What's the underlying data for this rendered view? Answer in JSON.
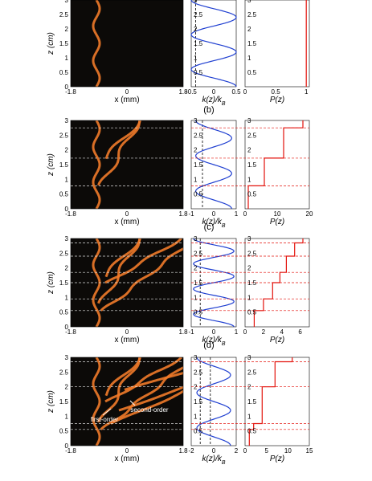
{
  "figure": {
    "shared": {
      "beam_x_ticks": [
        "-1.8",
        "0",
        "1.8"
      ],
      "beam_x_label": "x (mm)",
      "z_label": "z (cm)",
      "k_label": "k(z)/k",
      "k_label_sub": "B",
      "p_label": "P(z)",
      "z_ticks": [
        "0",
        "0.5",
        "1",
        "1.5",
        "2",
        "2.5",
        "3"
      ]
    },
    "annotations": {
      "first_order": "first-order",
      "second_order": "second-order"
    },
    "colors": {
      "k_curve": "#1f3fd1",
      "p_curve": "#e3120b",
      "beam": "#f07a2a",
      "panel_bg": "#0c0a08"
    }
  },
  "chart_data": [
    {
      "id": "a",
      "panel_label": "",
      "type": "line",
      "k": {
        "xlim": [
          -0.5,
          0.5
        ],
        "x_ticks": [
          "-0.5",
          "0",
          "0.5"
        ],
        "dashed_x": [
          -0.4
        ],
        "amplitude": 0.5,
        "cycles": 2.5,
        "phase": 0
      },
      "p": {
        "xlim": [
          0,
          1.05
        ],
        "x_ticks": [
          "0",
          "0.5",
          "1"
        ],
        "steps_z": [],
        "levels": [
          1
        ]
      },
      "beam_orders": 0
    },
    {
      "id": "b",
      "panel_label": "(b)",
      "type": "line",
      "k": {
        "xlim": [
          -1,
          1
        ],
        "x_ticks": [
          "-1",
          "0",
          "1"
        ],
        "dashed_x": [
          -0.5
        ],
        "amplitude": 0.8,
        "cycles": 2.5,
        "phase": 0
      },
      "p": {
        "xlim": [
          0,
          20
        ],
        "x_ticks": [
          "0",
          "10",
          "20"
        ],
        "steps_z": [
          0.78,
          1.72,
          2.75
        ],
        "levels": [
          1,
          6,
          12,
          18
        ]
      },
      "beam_orders": 1
    },
    {
      "id": "c",
      "panel_label": "(c)",
      "type": "line",
      "k": {
        "xlim": [
          -1,
          1
        ],
        "x_ticks": [
          "-1",
          "0",
          "1"
        ],
        "dashed_x": [
          -0.6
        ],
        "amplitude": 0.9,
        "cycles": 3.5,
        "phase": 0
      },
      "p": {
        "xlim": [
          0,
          7
        ],
        "x_ticks": [
          "0",
          "2",
          "4",
          "6"
        ],
        "steps_z": [
          0.55,
          0.95,
          1.5,
          1.85,
          2.4,
          2.85
        ],
        "levels": [
          1,
          2,
          3,
          3.8,
          4.5,
          5.4,
          6.3
        ]
      },
      "beam_orders": 2
    },
    {
      "id": "d",
      "panel_label": "(d)",
      "type": "line",
      "k": {
        "xlim": [
          -2,
          2
        ],
        "x_ticks": [
          "-2",
          "0",
          "2"
        ],
        "dashed_x": [
          -1.2,
          -0.3
        ],
        "amplitude": 1.5,
        "cycles": 2.5,
        "phase": 0
      },
      "p": {
        "xlim": [
          0,
          15
        ],
        "x_ticks": [
          "0",
          "5",
          "10",
          "15"
        ],
        "steps_z": [
          0.55,
          0.75,
          2.0,
          2.85
        ],
        "levels": [
          1,
          2,
          4,
          7,
          11
        ]
      },
      "beam_orders": 3
    }
  ]
}
